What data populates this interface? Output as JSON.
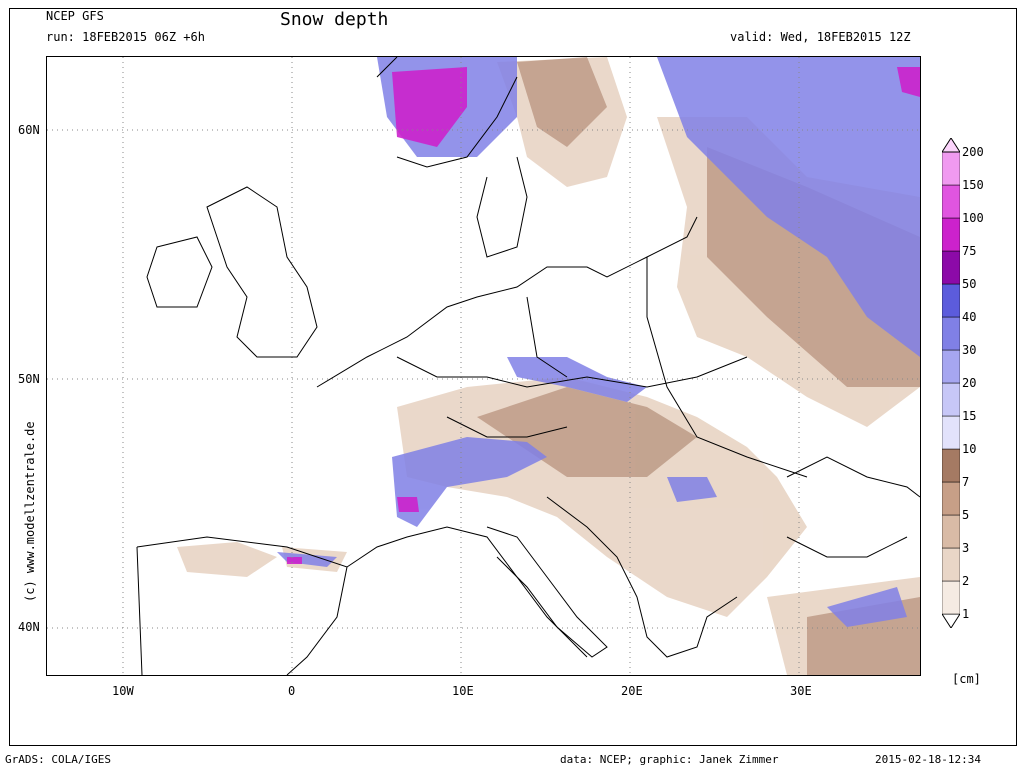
{
  "header": {
    "model": "NCEP GFS",
    "run": "run: 18FEB2015 06Z +6h",
    "title": "Snow depth",
    "valid": "valid: Wed, 18FEB2015 12Z"
  },
  "axes": {
    "lat_ticks": [
      "60N",
      "50N",
      "40N"
    ],
    "lon_ticks": [
      "10W",
      "0",
      "10E",
      "20E",
      "30E"
    ]
  },
  "side_text": "(c) www.modellzentrale.de",
  "colorbar": {
    "unit": "[cm]",
    "levels": [
      "1",
      "2",
      "3",
      "5",
      "7",
      "10",
      "15",
      "20",
      "30",
      "40",
      "50",
      "75",
      "100",
      "150",
      "200"
    ],
    "colors": [
      "#ffffff",
      "#f5ebe3",
      "#e9d6c7",
      "#d9bba6",
      "#c79f87",
      "#a57a63",
      "#e2e2fb",
      "#c7c7f7",
      "#a6a6f0",
      "#8080e6",
      "#5c5cdc",
      "#8c0aa8",
      "#cc22cc",
      "#e055e0",
      "#f09af0",
      "#fbd4fb"
    ]
  },
  "footer": {
    "left": "GrADS: COLA/IGES",
    "center": "data: NCEP; graphic: Janek Zimmer",
    "right": "2015-02-18-12:34"
  },
  "map_regions": {
    "land_color": "#ffffff",
    "coast_color": "#000000",
    "snow_light": "#e9d6c7",
    "snow_brown": "#a57a63",
    "snow_blue": "#8080e6",
    "snow_purple": "#cc22cc"
  }
}
